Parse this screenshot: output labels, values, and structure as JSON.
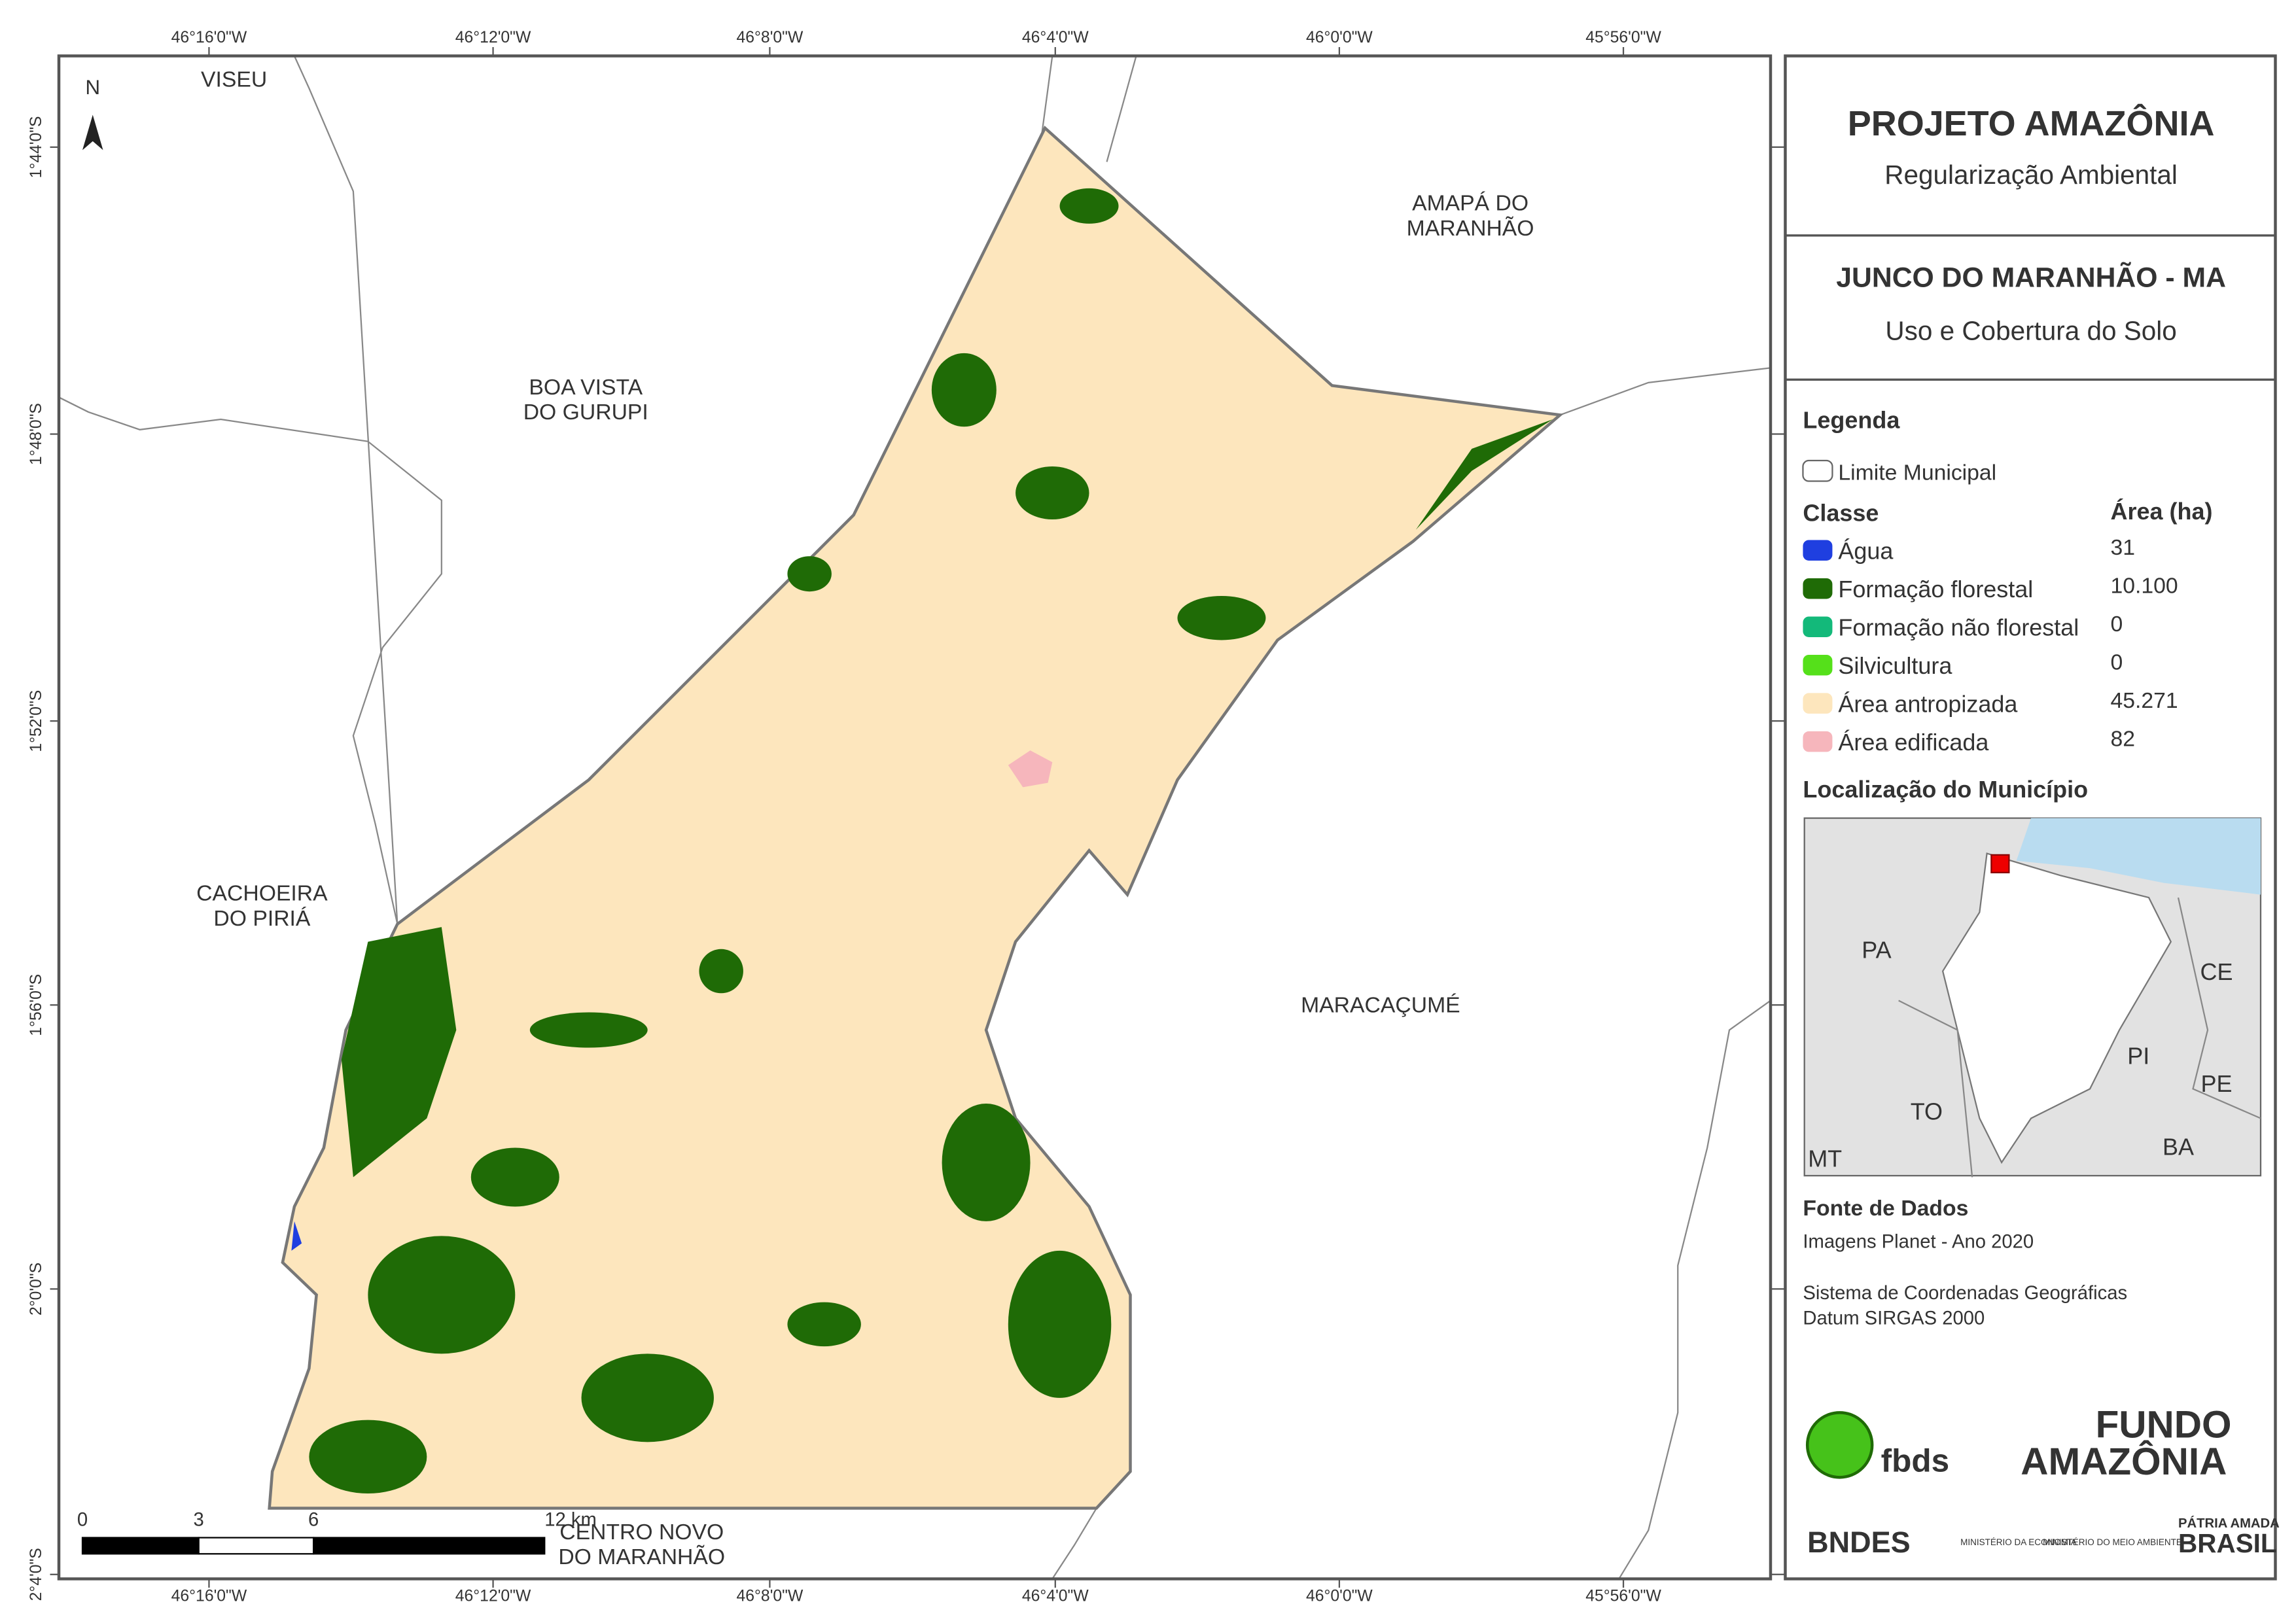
{
  "map": {
    "north": "N",
    "top_ticks": [
      "46°16'0\"W",
      "46°12'0\"W",
      "46°8'0\"W",
      "46°4'0\"W",
      "46°0'0\"W",
      "45°56'0\"W"
    ],
    "bottom_ticks": [
      "46°16'0\"W",
      "46°12'0\"W",
      "46°8'0\"W",
      "46°4'0\"W",
      "46°0'0\"W",
      "45°56'0\"W"
    ],
    "left_ticks": [
      "1°44'0\"S",
      "1°48'0\"S",
      "1°52'0\"S",
      "1°56'0\"S",
      "2°0'0\"S",
      "2°4'0\"S"
    ],
    "places": [
      {
        "lines": [
          "VISEU"
        ]
      },
      {
        "lines": [
          "AMAPÁ DO",
          "MARANHÃO"
        ]
      },
      {
        "lines": [
          "BOA VISTA",
          "DO GURUPI"
        ]
      },
      {
        "lines": [
          "CACHOEIRA",
          "DO PIRIÁ"
        ]
      },
      {
        "lines": [
          "MARACAÇUMÉ"
        ]
      },
      {
        "lines": [
          "CENTRO NOVO",
          "DO MARANHÃO"
        ]
      }
    ],
    "scale": [
      "0",
      "3",
      "6",
      "12 km"
    ]
  },
  "panel": {
    "title": "PROJETO AMAZÔNIA",
    "subtitle": "Regularização Ambiental",
    "municipality": "JUNCO DO MARANHÃO - MA",
    "theme": "Uso e Cobertura do Solo",
    "legend": {
      "title": "Legenda",
      "boundary": "Limite Municipal",
      "class_header": "Classe",
      "area_header": "Área (ha)",
      "classes": [
        {
          "name": "Água",
          "area": "31",
          "color": "#1f3fe0"
        },
        {
          "name": "Formação florestal",
          "area": "10.100",
          "color": "#1f6b06"
        },
        {
          "name": "Formação não florestal",
          "area": "0",
          "color": "#13b97a"
        },
        {
          "name": "Silvicultura",
          "area": "0",
          "color": "#55e01a"
        },
        {
          "name": "Área antropizada",
          "area": "45.271",
          "color": "#fde6bd"
        },
        {
          "name": "Área edificada",
          "area": "82",
          "color": "#f6b6bc"
        }
      ]
    },
    "location": {
      "title": "Localização do Município",
      "states": [
        "PA",
        "CE",
        "PI",
        "PE",
        "TO",
        "BA",
        "MT"
      ]
    },
    "sources": {
      "title": "Fonte de Dados",
      "lines": [
        "Imagens Planet - Ano 2020",
        "Sistema de Coordenadas Geográficas",
        "Datum SIRGAS 2000"
      ]
    },
    "logos": {
      "fbds": "fbds",
      "fundo": "FUNDO",
      "amazonia": "AMAZÔNIA",
      "bndes": "BNDES",
      "ministry1": "MINISTÉRIO DA ECONOMIA",
      "ministry2": "MINISTÉRIO DO MEIO AMBIENTE",
      "patria": "PÁTRIA AMADA",
      "brasil": "BRASIL"
    }
  }
}
